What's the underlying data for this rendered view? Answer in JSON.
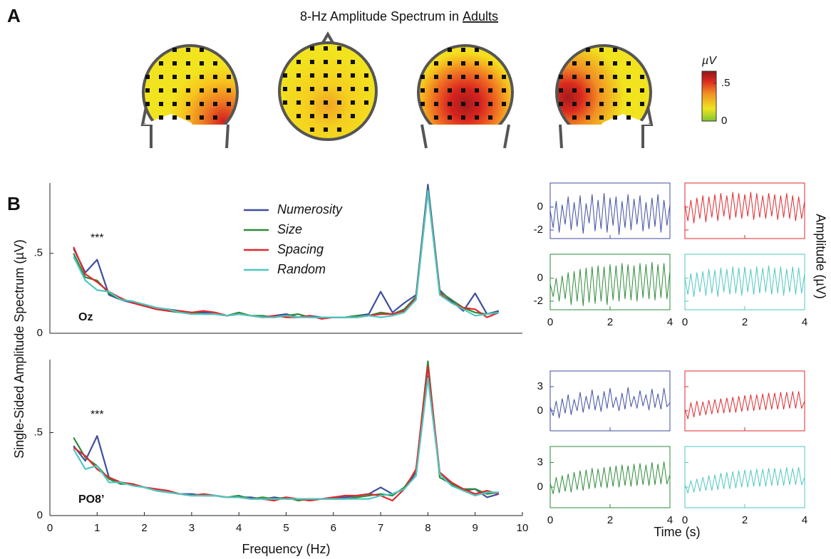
{
  "figure": {
    "panel_a": {
      "label": "A",
      "title": "8-Hz Amplitude Spectrum in",
      "title_underlined": "Adults",
      "colorbar": {
        "label": "µV",
        "lim": [
          0,
          0.66
        ],
        "ticks": [
          0,
          {
            "value": 0.5,
            "label": ".5"
          }
        ]
      }
    },
    "panel_b": {
      "label": "B"
    }
  },
  "chart_data": [
    {
      "type": "line",
      "label": "Oz",
      "annotation": "***",
      "y_label": "Single-Sided Amplitude Spectrum (µV)",
      "x": [
        0.5,
        0.75,
        1,
        1.25,
        1.5,
        1.75,
        2,
        2.25,
        2.5,
        2.75,
        3,
        3.25,
        3.5,
        3.75,
        4,
        4.25,
        4.5,
        4.75,
        5,
        5.25,
        5.5,
        5.75,
        6,
        6.25,
        6.5,
        6.75,
        7,
        7.25,
        7.5,
        7.75,
        8,
        8.25,
        8.5,
        8.75,
        9,
        9.25,
        9.5
      ],
      "xlim": [
        0,
        10
      ],
      "ylim": [
        0,
        0.94
      ],
      "yticks": [
        0,
        {
          "value": 0.5,
          "label": ".5"
        }
      ],
      "series": [
        {
          "name": "Numerosity",
          "color": "#3f4ea0",
          "values": [
            0.53,
            0.38,
            0.46,
            0.24,
            0.21,
            0.19,
            0.18,
            0.16,
            0.15,
            0.14,
            0.13,
            0.13,
            0.12,
            0.11,
            0.12,
            0.11,
            0.1,
            0.11,
            0.12,
            0.1,
            0.11,
            0.1,
            0.1,
            0.1,
            0.11,
            0.12,
            0.26,
            0.13,
            0.19,
            0.24,
            0.93,
            0.27,
            0.2,
            0.14,
            0.25,
            0.12,
            0.14
          ]
        },
        {
          "name": "Size",
          "color": "#2e8b3a",
          "values": [
            0.5,
            0.35,
            0.33,
            0.25,
            0.21,
            0.2,
            0.17,
            0.16,
            0.14,
            0.13,
            0.13,
            0.12,
            0.12,
            0.11,
            0.13,
            0.11,
            0.11,
            0.1,
            0.11,
            0.12,
            0.1,
            0.1,
            0.1,
            0.1,
            0.11,
            0.11,
            0.13,
            0.12,
            0.15,
            0.23,
            0.9,
            0.26,
            0.21,
            0.16,
            0.13,
            0.12,
            0.13
          ]
        },
        {
          "name": "Spacing",
          "color": "#e0282e",
          "values": [
            0.54,
            0.37,
            0.32,
            0.26,
            0.22,
            0.19,
            0.17,
            0.15,
            0.14,
            0.14,
            0.13,
            0.14,
            0.13,
            0.11,
            0.12,
            0.11,
            0.1,
            0.11,
            0.1,
            0.1,
            0.11,
            0.09,
            0.1,
            0.1,
            0.1,
            0.11,
            0.12,
            0.12,
            0.14,
            0.22,
            0.89,
            0.25,
            0.19,
            0.16,
            0.15,
            0.1,
            0.13
          ]
        },
        {
          "name": "Random",
          "color": "#4fc7c0",
          "values": [
            0.48,
            0.33,
            0.27,
            0.26,
            0.21,
            0.2,
            0.18,
            0.16,
            0.15,
            0.13,
            0.12,
            0.12,
            0.12,
            0.11,
            0.12,
            0.11,
            0.1,
            0.1,
            0.11,
            0.1,
            0.1,
            0.1,
            0.1,
            0.1,
            0.1,
            0.11,
            0.1,
            0.11,
            0.13,
            0.21,
            0.89,
            0.24,
            0.19,
            0.15,
            0.11,
            0.12,
            0.13
          ]
        }
      ]
    },
    {
      "type": "line",
      "label": "PO8’",
      "annotation": "***",
      "x_label": "Frequency (Hz)",
      "x": [
        0.5,
        0.75,
        1,
        1.25,
        1.5,
        1.75,
        2,
        2.25,
        2.5,
        2.75,
        3,
        3.25,
        3.5,
        3.75,
        4,
        4.25,
        4.5,
        4.75,
        5,
        5.25,
        5.5,
        5.75,
        6,
        6.25,
        6.5,
        6.75,
        7,
        7.25,
        7.5,
        7.75,
        8,
        8.25,
        8.5,
        8.75,
        9,
        9.25,
        9.5
      ],
      "xlim": [
        0,
        10
      ],
      "xticks": [
        0,
        1,
        2,
        3,
        4,
        5,
        6,
        7,
        8,
        9,
        10
      ],
      "ylim": [
        0,
        0.94
      ],
      "yticks": [
        0,
        {
          "value": 0.5,
          "label": ".5"
        }
      ],
      "series": [
        {
          "color": "#3f4ea0",
          "values": [
            0.42,
            0.33,
            0.48,
            0.23,
            0.2,
            0.19,
            0.17,
            0.15,
            0.14,
            0.13,
            0.13,
            0.12,
            0.12,
            0.11,
            0.11,
            0.11,
            0.1,
            0.11,
            0.1,
            0.1,
            0.1,
            0.1,
            0.11,
            0.11,
            0.12,
            0.13,
            0.17,
            0.13,
            0.16,
            0.26,
            0.84,
            0.25,
            0.19,
            0.15,
            0.16,
            0.11,
            0.13
          ]
        },
        {
          "color": "#2e8b3a",
          "values": [
            0.47,
            0.35,
            0.3,
            0.22,
            0.19,
            0.19,
            0.17,
            0.15,
            0.14,
            0.13,
            0.12,
            0.12,
            0.12,
            0.11,
            0.12,
            0.1,
            0.11,
            0.1,
            0.11,
            0.09,
            0.1,
            0.1,
            0.1,
            0.1,
            0.11,
            0.12,
            0.13,
            0.12,
            0.17,
            0.27,
            0.93,
            0.23,
            0.19,
            0.16,
            0.16,
            0.13,
            0.14
          ]
        },
        {
          "color": "#e0282e",
          "values": [
            0.41,
            0.36,
            0.28,
            0.23,
            0.2,
            0.19,
            0.17,
            0.16,
            0.15,
            0.13,
            0.12,
            0.13,
            0.12,
            0.11,
            0.11,
            0.1,
            0.1,
            0.09,
            0.11,
            0.1,
            0.09,
            0.1,
            0.11,
            0.12,
            0.12,
            0.13,
            0.12,
            0.09,
            0.16,
            0.28,
            0.9,
            0.26,
            0.2,
            0.16,
            0.13,
            0.15,
            0.13
          ]
        },
        {
          "color": "#4fc7c0",
          "values": [
            0.4,
            0.28,
            0.3,
            0.2,
            0.2,
            0.18,
            0.17,
            0.15,
            0.14,
            0.13,
            0.12,
            0.12,
            0.12,
            0.11,
            0.11,
            0.1,
            0.1,
            0.1,
            0.1,
            0.1,
            0.1,
            0.1,
            0.1,
            0.1,
            0.1,
            0.1,
            0.12,
            0.13,
            0.16,
            0.24,
            0.83,
            0.25,
            0.18,
            0.15,
            0.12,
            0.14,
            0.14
          ]
        }
      ]
    },
    {
      "type": "line",
      "y_label": "Amplitude (µV)",
      "x": [
        0,
        0.1,
        0.2,
        0.3,
        0.4,
        0.5,
        0.6,
        0.7,
        0.8,
        0.9,
        1,
        1.1,
        1.2,
        1.3,
        1.4,
        1.5,
        1.6,
        1.7,
        1.8,
        1.9,
        2,
        2.1,
        2.2,
        2.3,
        2.4,
        2.5,
        2.6,
        2.7,
        2.8,
        2.9,
        3,
        3.1,
        3.2,
        3.3,
        3.4,
        3.5,
        3.6,
        3.7,
        3.8,
        3.9,
        4
      ],
      "xlim": [
        0,
        4
      ],
      "xticks": [
        0,
        2,
        4
      ],
      "ylim": [
        -2.75,
        2.1
      ],
      "yticks": [
        -2,
        0
      ],
      "series": [
        {
          "color": "#3f4ea0",
          "values": [
            -0.3,
            -1.8,
            0.5,
            -2.2,
            0.2,
            -1.5,
            0.9,
            -2.0,
            0.4,
            -1.7,
            1.0,
            -2.3,
            0.3,
            -1.4,
            1.1,
            -2.1,
            0.6,
            -1.9,
            1.2,
            -2.2,
            0.8,
            -1.6,
            0.9,
            -2.4,
            0.5,
            -1.8,
            1.1,
            -2.0,
            0.7,
            -1.5,
            1.0,
            -2.1,
            0.4,
            -1.9,
            0.8,
            -1.7,
            1.1,
            -2.2,
            0.6,
            -1.6,
            0.2
          ]
        },
        {
          "color": "#e0282e",
          "values": [
            0.2,
            -1.2,
            0.6,
            -1.4,
            0.8,
            -1.0,
            1.0,
            -1.3,
            0.9,
            -0.9,
            1.1,
            -1.2,
            1.2,
            -0.8,
            1.0,
            -1.1,
            1.3,
            -0.9,
            1.2,
            -1.0,
            1.1,
            -0.8,
            1.3,
            -1.1,
            1.2,
            -0.9,
            1.0,
            -1.0,
            1.2,
            -0.8,
            1.1,
            -1.1,
            1.0,
            -0.9,
            1.2,
            -1.0,
            1.0,
            -1.2,
            0.9,
            -1.0,
            0.5
          ]
        },
        {
          "color": "#2e8b3a",
          "values": [
            -0.5,
            -1.6,
            0.0,
            -2.0,
            0.2,
            -1.8,
            0.5,
            -2.3,
            0.6,
            -2.0,
            0.8,
            -2.4,
            0.9,
            -2.1,
            1.0,
            -2.2,
            1.1,
            -2.0,
            1.0,
            -2.3,
            1.2,
            -1.9,
            1.1,
            -2.0,
            1.3,
            -1.8,
            1.2,
            -1.9,
            1.1,
            -2.0,
            1.3,
            -1.7,
            1.2,
            -1.8,
            1.4,
            -1.9,
            1.2,
            -1.7,
            1.3,
            -1.8,
            0.6
          ]
        },
        {
          "color": "#4fc7c0",
          "values": [
            0.0,
            -1.4,
            0.4,
            -1.6,
            0.5,
            -1.2,
            0.6,
            -1.5,
            0.8,
            -1.3,
            0.7,
            -1.6,
            0.9,
            -1.2,
            0.8,
            -1.4,
            1.0,
            -1.3,
            0.9,
            -1.5,
            1.0,
            -1.2,
            0.8,
            -1.4,
            1.0,
            -1.3,
            0.9,
            -1.2,
            1.1,
            -1.4,
            0.9,
            -1.3,
            1.0,
            -1.5,
            0.8,
            -1.2,
            1.0,
            -1.4,
            0.9,
            -1.3,
            0.4
          ]
        }
      ]
    },
    {
      "type": "line",
      "x_label": "Time (s)",
      "x": [
        0,
        0.1,
        0.2,
        0.3,
        0.4,
        0.5,
        0.6,
        0.7,
        0.8,
        0.9,
        1,
        1.1,
        1.2,
        1.3,
        1.4,
        1.5,
        1.6,
        1.7,
        1.8,
        1.9,
        2,
        2.1,
        2.2,
        2.3,
        2.4,
        2.5,
        2.6,
        2.7,
        2.8,
        2.9,
        3,
        3.1,
        3.2,
        3.3,
        3.4,
        3.5,
        3.6,
        3.7,
        3.8,
        3.9,
        4
      ],
      "xlim": [
        0,
        4
      ],
      "xticks": [
        0,
        2,
        4
      ],
      "ylim": [
        -2.5,
        4.95
      ],
      "yticks": [
        0,
        3
      ],
      "series": [
        {
          "color": "#3f4ea0",
          "values": [
            0.5,
            -0.6,
            1.2,
            -0.9,
            1.5,
            -0.3,
            2.0,
            -0.5,
            1.4,
            0.0,
            2.3,
            -0.2,
            1.8,
            0.2,
            2.6,
            0.1,
            1.9,
            -0.1,
            2.4,
            0.3,
            2.8,
            0.4,
            1.7,
            0.0,
            2.2,
            0.2,
            2.9,
            0.5,
            1.8,
            0.3,
            2.5,
            0.6,
            2.0,
            0.1,
            2.7,
            0.4,
            2.1,
            0.2,
            2.8,
            0.5,
            1.0
          ]
        },
        {
          "color": "#e0282e",
          "values": [
            0.2,
            -1.0,
            1.0,
            -0.8,
            1.2,
            -0.6,
            1.1,
            -0.5,
            1.3,
            -0.4,
            1.4,
            -0.3,
            1.5,
            -0.3,
            1.6,
            -0.2,
            1.7,
            -0.2,
            1.8,
            -0.1,
            1.9,
            0.0,
            2.0,
            0.0,
            2.0,
            0.1,
            2.1,
            0.1,
            2.2,
            0.2,
            2.2,
            0.2,
            2.3,
            0.2,
            2.3,
            0.3,
            2.4,
            0.3,
            2.4,
            0.3,
            1.2
          ]
        },
        {
          "color": "#2e8b3a",
          "values": [
            0.5,
            -0.8,
            1.2,
            -0.7,
            1.4,
            -0.5,
            1.6,
            -0.6,
            1.8,
            -0.3,
            2.0,
            -0.4,
            2.1,
            -0.2,
            2.3,
            -0.1,
            2.2,
            0.0,
            2.4,
            -0.1,
            2.5,
            0.1,
            2.6,
            0.0,
            2.7,
            0.2,
            2.6,
            0.1,
            2.8,
            0.2,
            2.9,
            0.3,
            2.7,
            0.2,
            3.0,
            0.3,
            2.8,
            0.4,
            3.1,
            0.4,
            1.5
          ]
        },
        {
          "color": "#4fc7c0",
          "values": [
            0.3,
            -0.7,
            0.8,
            -0.6,
            1.0,
            -0.5,
            1.2,
            -0.4,
            1.4,
            -0.4,
            1.5,
            -0.3,
            1.7,
            -0.2,
            1.8,
            -0.2,
            1.9,
            -0.1,
            2.0,
            0.0,
            2.1,
            0.0,
            2.1,
            0.1,
            2.2,
            0.1,
            2.2,
            0.1,
            2.3,
            0.2,
            2.3,
            0.2,
            2.2,
            0.2,
            2.4,
            0.3,
            2.3,
            0.3,
            2.4,
            0.3,
            1.2
          ]
        }
      ]
    }
  ]
}
